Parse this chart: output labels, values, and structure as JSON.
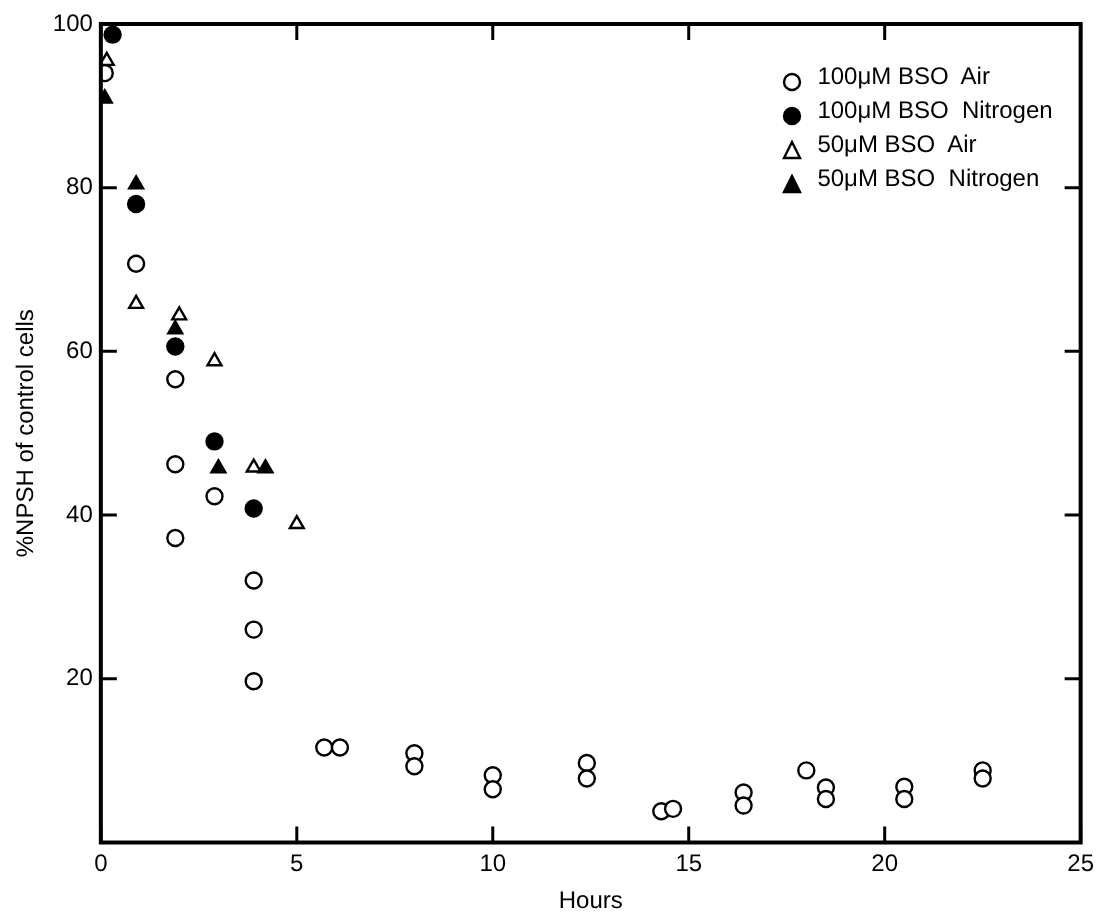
{
  "chart_data": {
    "type": "scatter",
    "xlabel": "Hours",
    "ylabel": "%NPSH of control cells",
    "xlim": [
      0,
      25
    ],
    "ylim": [
      0,
      100
    ],
    "xticks": [
      0,
      5,
      10,
      15,
      20,
      25
    ],
    "yticks": [
      {
        "value": 0,
        "label": null
      },
      20,
      40,
      60,
      80,
      100
    ],
    "grid": false,
    "legend": "top right",
    "series": [
      {
        "name": "100μM BSO  Air",
        "color": "#ffffff",
        "marker": "circle",
        "x": [
          0.1,
          0.9,
          1.9,
          1.9,
          1.9,
          2.9,
          3.9,
          3.9,
          3.9,
          5.7,
          6.1,
          8.0,
          8.0,
          10.0,
          10.0,
          12.4,
          12.4,
          14.3,
          14.6,
          16.4,
          16.4,
          18.0,
          18.5,
          18.5,
          20.5,
          20.5,
          22.5,
          22.5
        ],
        "values": [
          94,
          70.7,
          56.6,
          46.2,
          37.2,
          42.3,
          32,
          26,
          19.7,
          11.6,
          11.6,
          10.9,
          9.3,
          8.2,
          6.5,
          9.7,
          7.8,
          3.8,
          4.1,
          6.1,
          4.5,
          8.8,
          6.7,
          5.3,
          6.8,
          5.3,
          8.8,
          7.8
        ]
      },
      {
        "name": "100μM BSO  Nitrogen",
        "color": "#000000",
        "marker": "circle",
        "x": [
          0.3,
          0.9,
          1.9,
          2.9,
          3.9
        ],
        "values": [
          98.7,
          78,
          60.6,
          49,
          40.8
        ]
      },
      {
        "name": "50μM BSO  Air",
        "color": "#ffffff",
        "marker": "triangle",
        "x": [
          0.15,
          0.9,
          2.0,
          2.9,
          3.9,
          5.0
        ],
        "values": [
          95.5,
          65.8,
          64.4,
          58.8,
          45.8,
          38.9
        ]
      },
      {
        "name": "50μM BSO  Nitrogen",
        "color": "#000000",
        "marker": "triangle",
        "x": [
          0.1,
          0.9,
          1.9,
          3.0,
          4.2
        ],
        "values": [
          90.9,
          80.4,
          62.7,
          45.7,
          45.7
        ]
      }
    ]
  }
}
